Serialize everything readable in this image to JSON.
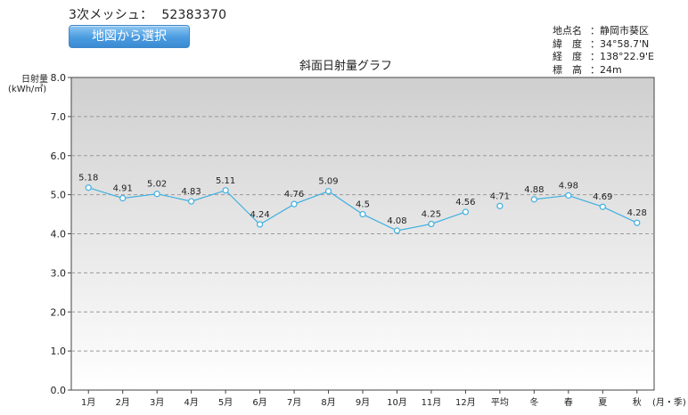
{
  "mesh": {
    "label": "3次メッシュ：",
    "code": "52383370"
  },
  "map_button": {
    "label": "地図から選択"
  },
  "location": {
    "rows": [
      {
        "key": "地点名",
        "value": "静岡市葵区"
      },
      {
        "key": "緯　度",
        "value": "34°58.7'N"
      },
      {
        "key": "経　度",
        "value": "138°22.9'E"
      },
      {
        "key": "標　高",
        "value": "24m"
      }
    ]
  },
  "colors": {
    "line": "#40b0e0",
    "plot_top": "#cfcfcf",
    "plot_bottom": "#ffffff",
    "grid": "#9a9a9a"
  },
  "chart_data": {
    "type": "line",
    "title": "斜面日射量グラフ",
    "ylabel_line1": "日射量",
    "ylabel_line2": "(kWh/㎡)",
    "xunit": "(月・季)",
    "ylim": [
      0,
      8
    ],
    "yticks": [
      "0.0",
      "1.0",
      "2.0",
      "3.0",
      "4.0",
      "5.0",
      "6.0",
      "7.0",
      "8.0"
    ],
    "grid": true,
    "categories": [
      "1月",
      "2月",
      "3月",
      "4月",
      "5月",
      "6月",
      "7月",
      "8月",
      "9月",
      "10月",
      "11月",
      "12月",
      "平均",
      "冬",
      "春",
      "夏",
      "秋"
    ],
    "values": [
      5.18,
      4.91,
      5.02,
      4.83,
      5.11,
      4.24,
      4.76,
      5.09,
      4.5,
      4.08,
      4.25,
      4.56,
      4.71,
      4.88,
      4.98,
      4.69,
      4.28
    ],
    "labels": [
      "5.18",
      "4.91",
      "5.02",
      "4.83",
      "5.11",
      "4.24",
      "4.76",
      "5.09",
      "4.5",
      "4.08",
      "4.25",
      "4.56",
      "4.71",
      "4.88",
      "4.98",
      "4.69",
      "4.28"
    ],
    "segments": [
      [
        0,
        11
      ],
      [
        12,
        12
      ],
      [
        13,
        16
      ]
    ]
  }
}
